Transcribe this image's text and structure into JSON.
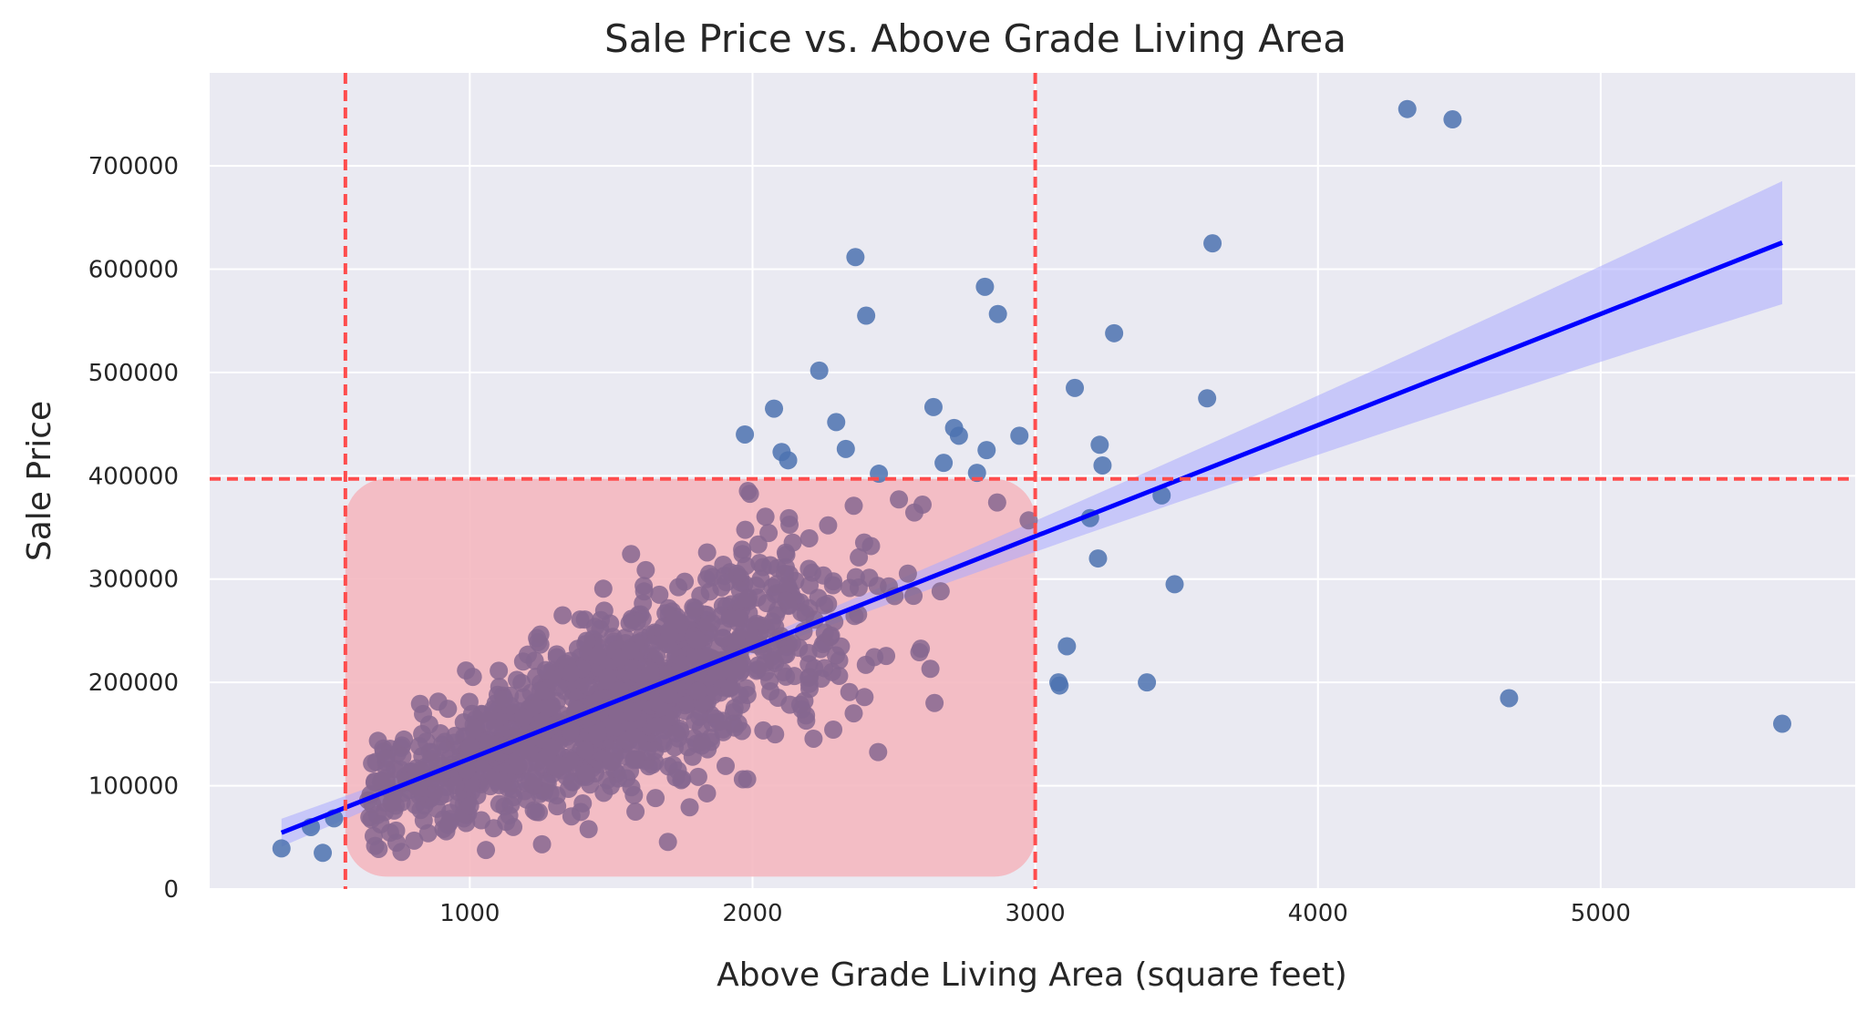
{
  "chart_data": {
    "type": "scatter",
    "title": "Sale Price vs. Above Grade Living Area",
    "xlabel": "Above Grade Living Area (square feet)",
    "ylabel": "Sale Price",
    "xlim": [
      80,
      5900
    ],
    "ylim": [
      0,
      790000
    ],
    "x_ticks": [
      "1000",
      "2000",
      "3000",
      "4000",
      "5000"
    ],
    "y_ticks": [
      "0",
      "100000",
      "200000",
      "300000",
      "400000",
      "500000",
      "600000",
      "700000"
    ],
    "grid": true,
    "background": "#eaeaf2",
    "colors": {
      "points": "#4c72b0",
      "points_in_region": "#86678f",
      "region_fill": "#f4b8c0",
      "threshold_lines": "#ff4d4d",
      "regression_line": "#0000ff",
      "confidence_band": "#aaaaff"
    },
    "threshold_lines": {
      "x": [
        560,
        3000
      ],
      "y": [
        397000
      ]
    },
    "highlight_region": {
      "x_range": [
        560,
        3000
      ],
      "y_range": [
        12000,
        397000
      ]
    },
    "regression": {
      "x_range": [
        334,
        5642
      ],
      "slope": 107.6,
      "intercept": 18600,
      "band_at_x_max": [
        563000,
        682000
      ]
    },
    "outlier_points": [
      {
        "x": 334,
        "y": 39300
      },
      {
        "x": 438,
        "y": 60000
      },
      {
        "x": 480,
        "y": 35000
      },
      {
        "x": 520,
        "y": 68400
      },
      {
        "x": 1973,
        "y": 440000
      },
      {
        "x": 2076,
        "y": 465000
      },
      {
        "x": 2103,
        "y": 423000
      },
      {
        "x": 2126,
        "y": 415000
      },
      {
        "x": 2236,
        "y": 501800
      },
      {
        "x": 2296,
        "y": 451950
      },
      {
        "x": 2330,
        "y": 426000
      },
      {
        "x": 2364,
        "y": 611657
      },
      {
        "x": 2402,
        "y": 555000
      },
      {
        "x": 2447,
        "y": 402000
      },
      {
        "x": 2640,
        "y": 466500
      },
      {
        "x": 2676,
        "y": 412500
      },
      {
        "x": 2713,
        "y": 446261
      },
      {
        "x": 2730,
        "y": 438780
      },
      {
        "x": 2794,
        "y": 402861
      },
      {
        "x": 2822,
        "y": 582933
      },
      {
        "x": 2828,
        "y": 424870
      },
      {
        "x": 2868,
        "y": 556581
      },
      {
        "x": 2944,
        "y": 438780
      },
      {
        "x": 3082,
        "y": 200000
      },
      {
        "x": 3086,
        "y": 197000
      },
      {
        "x": 3112,
        "y": 235000
      },
      {
        "x": 3140,
        "y": 485000
      },
      {
        "x": 3194,
        "y": 359100
      },
      {
        "x": 3222,
        "y": 320000
      },
      {
        "x": 3228,
        "y": 430000
      },
      {
        "x": 3238,
        "y": 410000
      },
      {
        "x": 3279,
        "y": 538000
      },
      {
        "x": 3395,
        "y": 200000
      },
      {
        "x": 3447,
        "y": 381000
      },
      {
        "x": 3493,
        "y": 295000
      },
      {
        "x": 3608,
        "y": 475000
      },
      {
        "x": 3627,
        "y": 625000
      },
      {
        "x": 4316,
        "y": 755000
      },
      {
        "x": 4476,
        "y": 745000
      },
      {
        "x": 4676,
        "y": 184750
      },
      {
        "x": 5642,
        "y": 160000
      }
    ]
  }
}
